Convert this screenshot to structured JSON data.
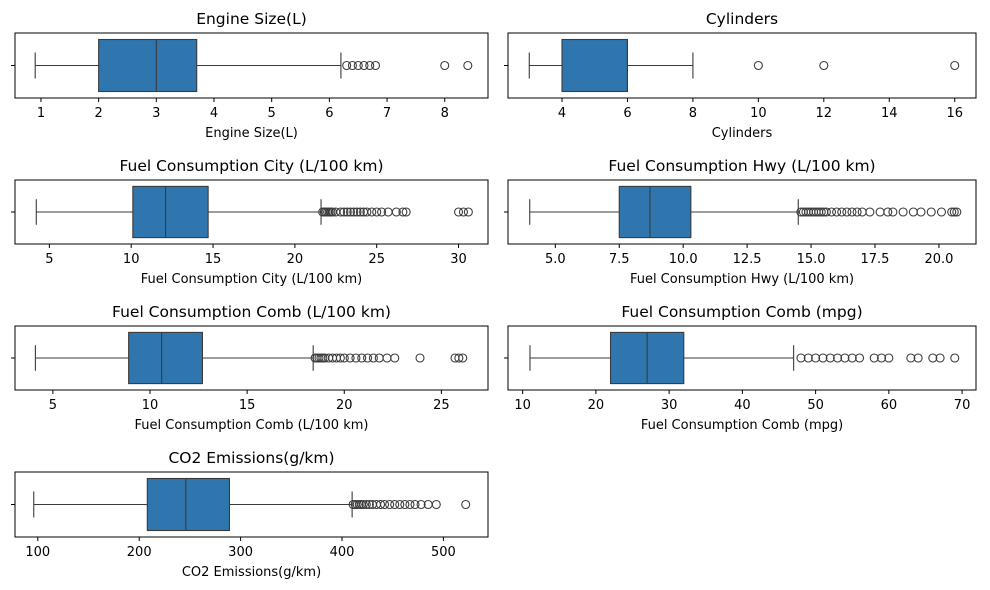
{
  "colors": {
    "box_fill": "#2e76ad",
    "line": "#3b3b3b",
    "axes": "#000000",
    "background": "#ffffff"
  },
  "chart_data": [
    {
      "type": "boxplot",
      "title": "Engine Size(L)",
      "xlabel": "Engine Size(L)",
      "xlim": [
        0.55,
        8.75
      ],
      "ticks": [
        1,
        2,
        3,
        4,
        5,
        6,
        7,
        8
      ],
      "tick_labels": [
        "1",
        "2",
        "3",
        "4",
        "5",
        "6",
        "7",
        "8"
      ],
      "whisker_low": 0.9,
      "q1": 2.0,
      "median": 3.0,
      "q3": 3.7,
      "whisker_high": 6.2,
      "outliers": [
        6.3,
        6.4,
        6.5,
        6.6,
        6.7,
        6.8,
        8.0,
        8.4
      ]
    },
    {
      "type": "boxplot",
      "title": "Cylinders",
      "xlabel": "Cylinders",
      "xlim": [
        2.35,
        16.65
      ],
      "ticks": [
        4,
        6,
        8,
        10,
        12,
        14,
        16
      ],
      "tick_labels": [
        "4",
        "6",
        "8",
        "10",
        "12",
        "14",
        "16"
      ],
      "whisker_low": 3,
      "q1": 4,
      "median": 6,
      "q3": 6,
      "whisker_high": 8,
      "outliers": [
        10,
        12,
        16
      ]
    },
    {
      "type": "boxplot",
      "title": "Fuel Consumption City (L/100 km)",
      "xlabel": "Fuel Consumption City (L/100 km)",
      "xlim": [
        2.9,
        31.8
      ],
      "ticks": [
        5,
        10,
        15,
        20,
        25,
        30
      ],
      "tick_labels": [
        "5",
        "10",
        "15",
        "20",
        "25",
        "30"
      ],
      "whisker_low": 4.2,
      "q1": 10.1,
      "median": 12.1,
      "q3": 14.7,
      "whisker_high": 21.6,
      "outliers": [
        21.7,
        21.8,
        21.9,
        22.0,
        22.1,
        22.2,
        22.3,
        22.5,
        22.8,
        23.0,
        23.2,
        23.4,
        23.6,
        23.8,
        24.0,
        24.2,
        24.4,
        24.7,
        25.0,
        25.3,
        25.7,
        26.2,
        26.6,
        26.8,
        30.0,
        30.3,
        30.6
      ]
    },
    {
      "type": "boxplot",
      "title": "Fuel Consumption Hwy (L/100 km)",
      "xlabel": "Fuel Consumption Hwy (L/100 km)",
      "xlim": [
        3.15,
        21.45
      ],
      "ticks": [
        5.0,
        7.5,
        10.0,
        12.5,
        15.0,
        17.5,
        20.0
      ],
      "tick_labels": [
        "5.0",
        "7.5",
        "10.0",
        "12.5",
        "15.0",
        "17.5",
        "20.0"
      ],
      "whisker_low": 4.0,
      "q1": 7.5,
      "median": 8.7,
      "q3": 10.3,
      "whisker_high": 14.5,
      "outliers": [
        14.6,
        14.7,
        14.8,
        14.9,
        15.0,
        15.1,
        15.2,
        15.3,
        15.4,
        15.5,
        15.6,
        15.8,
        16.0,
        16.2,
        16.4,
        16.6,
        16.8,
        17.0,
        17.3,
        17.7,
        18.0,
        18.2,
        18.6,
        19.0,
        19.3,
        19.7,
        20.1,
        20.5,
        20.6,
        20.7
      ]
    },
    {
      "type": "boxplot",
      "title": "Fuel Consumption Comb (L/100 km)",
      "xlabel": "Fuel Consumption Comb (L/100 km)",
      "xlim": [
        3.05,
        27.4
      ],
      "ticks": [
        5,
        10,
        15,
        20,
        25
      ],
      "tick_labels": [
        "5",
        "10",
        "15",
        "20",
        "25"
      ],
      "whisker_low": 4.1,
      "q1": 8.9,
      "median": 10.6,
      "q3": 12.7,
      "whisker_high": 18.4,
      "outliers": [
        18.5,
        18.6,
        18.7,
        18.8,
        18.9,
        19.0,
        19.2,
        19.4,
        19.6,
        19.8,
        20.0,
        20.3,
        20.6,
        20.9,
        21.2,
        21.5,
        21.8,
        22.2,
        22.6,
        23.9,
        25.7,
        25.9,
        26.1
      ]
    },
    {
      "type": "boxplot",
      "title": "Fuel Consumption Comb (mpg)",
      "xlabel": "Fuel Consumption Comb (mpg)",
      "xlim": [
        8.0,
        71.9
      ],
      "ticks": [
        10,
        20,
        30,
        40,
        50,
        60,
        70
      ],
      "tick_labels": [
        "10",
        "20",
        "30",
        "40",
        "50",
        "60",
        "70"
      ],
      "whisker_low": 11,
      "q1": 22,
      "median": 27,
      "q3": 32,
      "whisker_high": 47,
      "outliers": [
        48,
        49,
        50,
        51,
        52,
        53,
        54,
        55,
        56,
        58,
        59,
        60,
        63,
        64,
        66,
        67,
        69
      ]
    },
    {
      "type": "boxplot",
      "title": "CO2 Emissions(g/km)",
      "xlabel": "CO2 Emissions(g/km)",
      "xlim": [
        77.5,
        544
      ],
      "ticks": [
        100,
        200,
        300,
        400,
        500
      ],
      "tick_labels": [
        "100",
        "200",
        "300",
        "400",
        "500"
      ],
      "whisker_low": 96,
      "q1": 208,
      "median": 246,
      "q3": 289,
      "whisker_high": 410,
      "outliers": [
        411,
        413,
        415,
        417,
        419,
        421,
        424,
        427,
        430,
        434,
        438,
        442,
        447,
        452,
        457,
        462,
        467,
        472,
        478,
        485,
        493,
        522
      ]
    }
  ]
}
